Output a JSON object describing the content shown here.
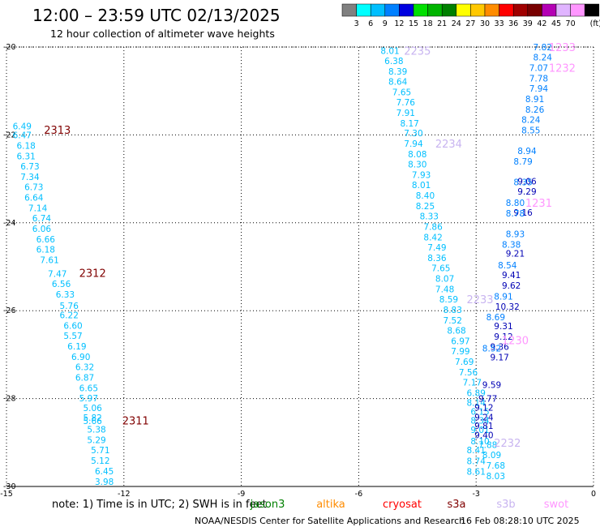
{
  "header": {
    "title": "12:00 – 23:59 UTC 02/13/2025",
    "subtitle": "12 hour collection of altimeter wave heights"
  },
  "colorbar": {
    "ticks": [
      "3",
      "6",
      "9",
      "12",
      "15",
      "18",
      "21",
      "24",
      "27",
      "30",
      "33",
      "36",
      "39",
      "42",
      "45",
      "70"
    ],
    "unit": "(ft)",
    "colors": [
      "#808080",
      "#00ffff",
      "#00bfff",
      "#0080ff",
      "#0000e0",
      "#00e000",
      "#00b400",
      "#008000",
      "#ffff00",
      "#ffc800",
      "#ff8c00",
      "#ff0000",
      "#a00000",
      "#780000",
      "#b400b4",
      "#e0b4ff",
      "#ff96ff",
      "#000000"
    ]
  },
  "footer": {
    "note": "note: 1) Time is in UTC; 2) SWH is in feet",
    "missions": [
      {
        "name": "jason3",
        "color": "#008000"
      },
      {
        "name": "altika",
        "color": "#ff8c00"
      },
      {
        "name": "cryosat",
        "color": "#ff0000"
      },
      {
        "name": "s3a",
        "color": "#800000"
      },
      {
        "name": "s3b",
        "color": "#c8b4f0"
      },
      {
        "name": "swot",
        "color": "#ff96ff"
      }
    ],
    "credit": "NOAA/NESDIS Center for Satellite Applications and Research",
    "timestamp": "16 Feb 08:28:10 UTC 2025"
  },
  "chart_data": {
    "type": "scatter",
    "xlim": [
      -15,
      0
    ],
    "ylim": [
      -30,
      -20
    ],
    "x_ticks": [
      "-15",
      "-12",
      "-9",
      "-6",
      "-3",
      "0"
    ],
    "y_ticks": [
      "-20",
      "-22",
      "-24",
      "-26",
      "-28",
      "-30"
    ],
    "grid": true,
    "series": [
      {
        "color": "#00bfff",
        "points": [
          {
            "x": -14.6,
            "y": -21.8,
            "label": "6.49"
          },
          {
            "x": -14.6,
            "y": -22.0,
            "label": "6.47"
          },
          {
            "x": -14.5,
            "y": -22.24,
            "label": "6.18"
          },
          {
            "x": -14.5,
            "y": -22.48,
            "label": "6.31"
          },
          {
            "x": -14.4,
            "y": -22.71,
            "label": "6.73"
          },
          {
            "x": -14.4,
            "y": -22.95,
            "label": "7.34"
          },
          {
            "x": -14.3,
            "y": -23.18,
            "label": "6.73"
          },
          {
            "x": -14.3,
            "y": -23.42,
            "label": "6.64"
          },
          {
            "x": -14.2,
            "y": -23.66,
            "label": "7.14"
          },
          {
            "x": -14.1,
            "y": -23.89,
            "label": "6.74"
          },
          {
            "x": -14.1,
            "y": -24.13,
            "label": "6.06"
          },
          {
            "x": -14.0,
            "y": -24.37,
            "label": "6.66"
          },
          {
            "x": -14.0,
            "y": -24.6,
            "label": "6.18"
          },
          {
            "x": -13.9,
            "y": -24.84,
            "label": "7.61"
          },
          {
            "x": -13.7,
            "y": -25.16,
            "label": "7.47"
          },
          {
            "x": -13.6,
            "y": -25.39,
            "label": "6.56"
          },
          {
            "x": -13.5,
            "y": -25.63,
            "label": "6.33"
          },
          {
            "x": -13.4,
            "y": -25.89,
            "label": "5.76"
          },
          {
            "x": -13.4,
            "y": -26.1,
            "label": "6.22"
          },
          {
            "x": -13.3,
            "y": -26.34,
            "label": "6.60"
          },
          {
            "x": -13.3,
            "y": -26.57,
            "label": "5.57"
          },
          {
            "x": -13.2,
            "y": -26.81,
            "label": "6.19"
          },
          {
            "x": -13.1,
            "y": -27.05,
            "label": "6.90"
          },
          {
            "x": -13.0,
            "y": -27.28,
            "label": "6.32"
          },
          {
            "x": -13.0,
            "y": -27.52,
            "label": "6.87"
          },
          {
            "x": -12.9,
            "y": -27.76,
            "label": "6.65"
          },
          {
            "x": -12.9,
            "y": -27.99,
            "label": "5.97"
          },
          {
            "x": -12.8,
            "y": -28.21,
            "label": "5.06"
          },
          {
            "x": -12.8,
            "y": -28.43,
            "label": "5.82"
          },
          {
            "x": -12.8,
            "y": -28.51,
            "label": "5.66"
          },
          {
            "x": -12.7,
            "y": -28.7,
            "label": "5.38"
          },
          {
            "x": -12.7,
            "y": -28.94,
            "label": "5.29"
          },
          {
            "x": -12.6,
            "y": -29.17,
            "label": "5.71"
          },
          {
            "x": -12.6,
            "y": -29.41,
            "label": "5.12"
          },
          {
            "x": -12.5,
            "y": -29.65,
            "label": "6.45"
          },
          {
            "x": -12.5,
            "y": -29.89,
            "label": "3.98"
          }
        ]
      },
      {
        "color": "#00bfff",
        "points": [
          {
            "x": -5.2,
            "y": -20.08,
            "label": "8.01"
          },
          {
            "x": -5.1,
            "y": -20.31,
            "label": "6.38"
          },
          {
            "x": -5.0,
            "y": -20.55,
            "label": "8.39"
          },
          {
            "x": -5.0,
            "y": -20.78,
            "label": "8.64"
          },
          {
            "x": -4.9,
            "y": -21.02,
            "label": "7.65"
          },
          {
            "x": -4.8,
            "y": -21.25,
            "label": "7.76"
          },
          {
            "x": -4.8,
            "y": -21.49,
            "label": "7.91"
          },
          {
            "x": -4.7,
            "y": -21.73,
            "label": "8.17"
          },
          {
            "x": -4.6,
            "y": -21.96,
            "label": "7.30"
          },
          {
            "x": -4.6,
            "y": -22.2,
            "label": "7.94"
          },
          {
            "x": -4.5,
            "y": -22.44,
            "label": "8.08"
          },
          {
            "x": -4.5,
            "y": -22.67,
            "label": "8.30"
          },
          {
            "x": -4.4,
            "y": -22.91,
            "label": "7.93"
          },
          {
            "x": -4.4,
            "y": -23.14,
            "label": "8.01"
          },
          {
            "x": -4.3,
            "y": -23.38,
            "label": "8.40"
          },
          {
            "x": -4.3,
            "y": -23.62,
            "label": "8.25"
          },
          {
            "x": -4.2,
            "y": -23.85,
            "label": "8.33"
          },
          {
            "x": -4.1,
            "y": -24.09,
            "label": "7.86"
          },
          {
            "x": -4.1,
            "y": -24.33,
            "label": "8.42"
          },
          {
            "x": -4.0,
            "y": -24.56,
            "label": "7.49"
          },
          {
            "x": -4.0,
            "y": -24.8,
            "label": "8.36"
          },
          {
            "x": -3.9,
            "y": -25.03,
            "label": "7.65"
          },
          {
            "x": -3.8,
            "y": -25.27,
            "label": "8.07"
          },
          {
            "x": -3.8,
            "y": -25.51,
            "label": "7.48"
          },
          {
            "x": -3.7,
            "y": -25.74,
            "label": "8.59"
          },
          {
            "x": -3.6,
            "y": -25.98,
            "label": "8.83"
          },
          {
            "x": -3.6,
            "y": -26.22,
            "label": "7.52"
          },
          {
            "x": -3.5,
            "y": -26.45,
            "label": "8.68"
          },
          {
            "x": -3.4,
            "y": -26.69,
            "label": "6.97"
          },
          {
            "x": -3.4,
            "y": -26.92,
            "label": "7.99"
          },
          {
            "x": -3.3,
            "y": -27.16,
            "label": "7.69"
          },
          {
            "x": -3.2,
            "y": -27.4,
            "label": "7.56"
          },
          {
            "x": -3.1,
            "y": -27.63,
            "label": "7.17"
          },
          {
            "x": -3.0,
            "y": -27.87,
            "label": "6.89"
          },
          {
            "x": -3.0,
            "y": -28.09,
            "label": "8.14"
          },
          {
            "x": -2.9,
            "y": -28.29,
            "label": "6.15"
          },
          {
            "x": -2.9,
            "y": -28.5,
            "label": "8.34"
          },
          {
            "x": -2.9,
            "y": -28.71,
            "label": "9.01"
          },
          {
            "x": -2.9,
            "y": -28.97,
            "label": "8.10"
          },
          {
            "x": -3.0,
            "y": -29.17,
            "label": "8.41"
          },
          {
            "x": -3.0,
            "y": -29.42,
            "label": "8.74"
          },
          {
            "x": -3.0,
            "y": -29.66,
            "label": "8.61"
          },
          {
            "x": -2.7,
            "y": -29.05,
            "label": "7.88"
          },
          {
            "x": -2.6,
            "y": -29.28,
            "label": "8.09"
          },
          {
            "x": -2.5,
            "y": -29.52,
            "label": "7.68"
          },
          {
            "x": -2.5,
            "y": -29.76,
            "label": "8.03"
          }
        ]
      },
      {
        "color": "#0000b4",
        "points": [
          {
            "x": -2.7,
            "y": -28.0,
            "label": "9.77"
          },
          {
            "x": -2.8,
            "y": -28.2,
            "label": "9.12"
          },
          {
            "x": -2.8,
            "y": -28.42,
            "label": "9.24"
          },
          {
            "x": -2.8,
            "y": -28.62,
            "label": "9.81"
          },
          {
            "x": -2.8,
            "y": -28.83,
            "label": "9.40"
          },
          {
            "x": -2.6,
            "y": -27.68,
            "label": "9.59"
          },
          {
            "x": -2.4,
            "y": -27.06,
            "label": "9.17"
          },
          {
            "x": -2.4,
            "y": -26.82,
            "label": "9.36"
          },
          {
            "x": -2.3,
            "y": -26.59,
            "label": "9.12"
          },
          {
            "x": -2.3,
            "y": -26.35,
            "label": "9.31"
          },
          {
            "x": -2.2,
            "y": -25.9,
            "label": "10.32"
          },
          {
            "x": -2.1,
            "y": -25.42,
            "label": "9.62"
          },
          {
            "x": -2.1,
            "y": -25.18,
            "label": "9.41"
          },
          {
            "x": -2.0,
            "y": -24.7,
            "label": "9.21"
          },
          {
            "x": -1.8,
            "y": -23.76,
            "label": "9.16"
          },
          {
            "x": -1.7,
            "y": -23.28,
            "label": "9.29"
          },
          {
            "x": -1.7,
            "y": -23.05,
            "label": "9.06"
          }
        ]
      },
      {
        "color": "#0080ff",
        "points": [
          {
            "x": -1.3,
            "y": -20.0,
            "label": "7.82"
          },
          {
            "x": -1.3,
            "y": -20.23,
            "label": "8.24"
          },
          {
            "x": -1.4,
            "y": -20.47,
            "label": "7.07"
          },
          {
            "x": -1.4,
            "y": -20.71,
            "label": "7.78"
          },
          {
            "x": -1.4,
            "y": -20.94,
            "label": "7.94"
          },
          {
            "x": -1.5,
            "y": -21.18,
            "label": "8.91"
          },
          {
            "x": -1.5,
            "y": -21.42,
            "label": "8.26"
          },
          {
            "x": -1.6,
            "y": -21.65,
            "label": "8.24"
          },
          {
            "x": -1.6,
            "y": -21.89,
            "label": "8.55"
          },
          {
            "x": -1.7,
            "y": -22.36,
            "label": "8.94"
          },
          {
            "x": -1.8,
            "y": -22.6,
            "label": "8.79"
          },
          {
            "x": -1.8,
            "y": -23.07,
            "label": "8.35"
          },
          {
            "x": -2.0,
            "y": -23.54,
            "label": "8.80"
          },
          {
            "x": -2.0,
            "y": -23.78,
            "label": "8.78"
          },
          {
            "x": -2.0,
            "y": -24.25,
            "label": "8.93"
          },
          {
            "x": -2.1,
            "y": -24.49,
            "label": "8.38"
          },
          {
            "x": -2.2,
            "y": -24.96,
            "label": "8.54"
          },
          {
            "x": -2.3,
            "y": -25.67,
            "label": "8.91"
          },
          {
            "x": -2.5,
            "y": -26.14,
            "label": "8.69"
          },
          {
            "x": -2.6,
            "y": -26.85,
            "label": "8.52"
          }
        ]
      }
    ],
    "annotations": [
      {
        "x": -13.7,
        "y": -21.88,
        "text": "2313",
        "color": "#800000"
      },
      {
        "x": -12.8,
        "y": -25.14,
        "text": "2312",
        "color": "#800000"
      },
      {
        "x": -11.7,
        "y": -28.5,
        "text": "2311",
        "color": "#800000"
      },
      {
        "x": -4.5,
        "y": -20.08,
        "text": "2235",
        "color": "#c8b4f0"
      },
      {
        "x": -3.7,
        "y": -22.2,
        "text": "2234",
        "color": "#c8b4f0"
      },
      {
        "x": -2.9,
        "y": -25.74,
        "text": "2233",
        "color": "#c8b4f0"
      },
      {
        "x": -2.2,
        "y": -29.0,
        "text": "2232",
        "color": "#c8b4f0"
      },
      {
        "x": -0.8,
        "y": -20.0,
        "text": "1233",
        "color": "#ff96ff"
      },
      {
        "x": -0.8,
        "y": -20.47,
        "text": "1232",
        "color": "#ff96ff"
      },
      {
        "x": -1.4,
        "y": -23.54,
        "text": "1231",
        "color": "#ff96ff"
      },
      {
        "x": -2.0,
        "y": -26.67,
        "text": "1230",
        "color": "#ff96ff"
      }
    ]
  }
}
